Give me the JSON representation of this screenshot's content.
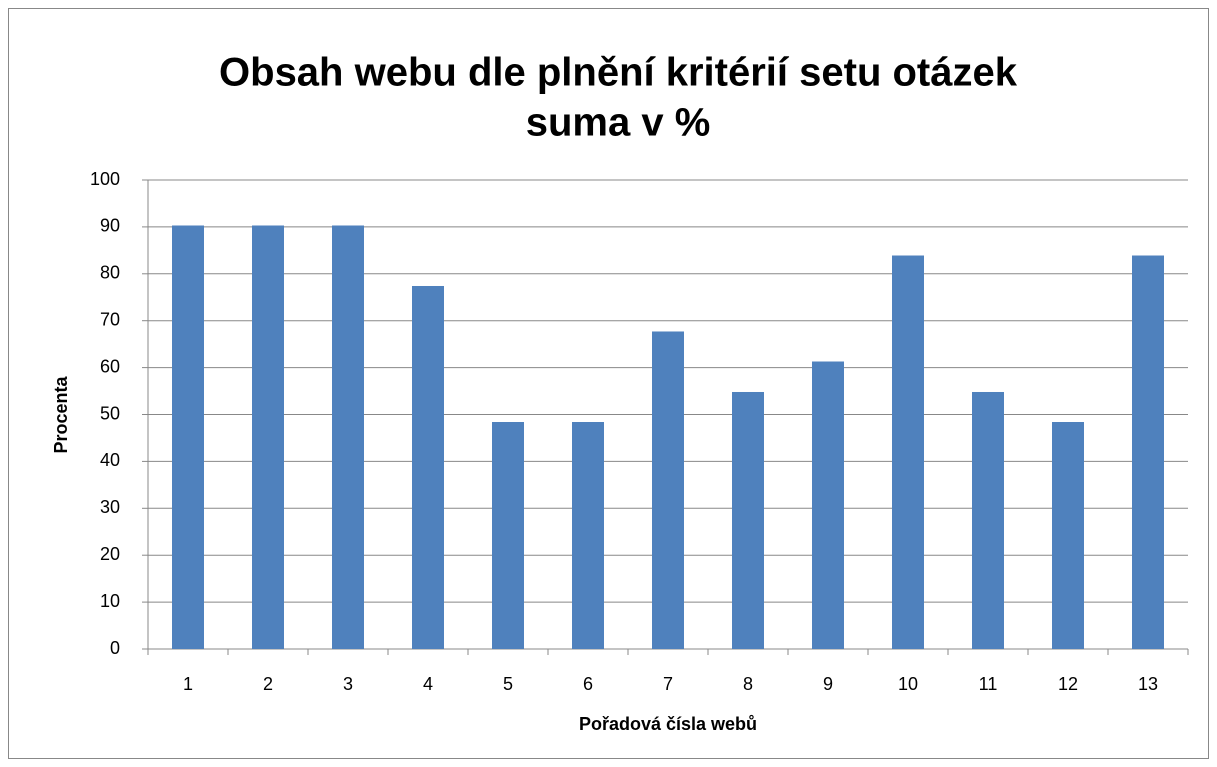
{
  "chart_data": {
    "type": "bar",
    "title": [
      "Obsah webu dle plnění kritérií setu otázek",
      "suma v %"
    ],
    "xlabel": "Pořadová čísla webů",
    "ylabel": "Procenta",
    "categories": [
      "1",
      "2",
      "3",
      "4",
      "5",
      "6",
      "7",
      "8",
      "9",
      "10",
      "11",
      "12",
      "13"
    ],
    "values": [
      90.3,
      90.3,
      90.3,
      77.4,
      48.4,
      48.4,
      67.7,
      54.8,
      61.3,
      83.9,
      54.8,
      48.4,
      83.9
    ],
    "color": "#4f81bd",
    "ylim": [
      0,
      100
    ],
    "yticks": [
      0,
      10,
      20,
      30,
      40,
      50,
      60,
      70,
      80,
      90,
      100
    ],
    "grid": true
  }
}
